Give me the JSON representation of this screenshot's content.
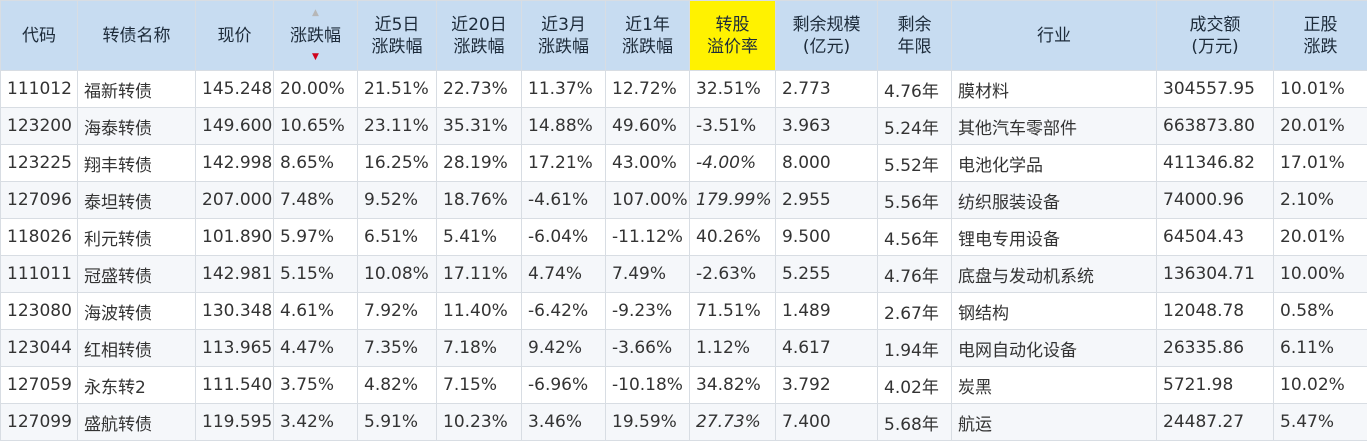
{
  "headers": {
    "code": "代码",
    "name": "转债名称",
    "price": "现价",
    "change_pct": "涨跌幅",
    "chg5d_l1": "近5日",
    "chg5d_l2": "涨跌幅",
    "chg20d_l1": "近20日",
    "chg20d_l2": "涨跌幅",
    "chg3m_l1": "近3月",
    "chg3m_l2": "涨跌幅",
    "chg1y_l1": "近1年",
    "chg1y_l2": "涨跌幅",
    "premium_l1": "转股",
    "premium_l2": "溢价率",
    "scale_l1": "剩余规模",
    "scale_l2": "(亿元)",
    "years_l1": "剩余",
    "years_l2": "年限",
    "industry": "行业",
    "turnover_l1": "成交额",
    "turnover_l2": "(万元)",
    "stock_chg_l1": "正股",
    "stock_chg_l2": "涨跌",
    "sort_up_arrow": "▲",
    "sort_down_arrow": "▼"
  },
  "colors": {
    "header_bg": "#c7dcf1",
    "highlight_header_bg": "#fff200",
    "code_link": "#1f5bb5",
    "up": "#e02020",
    "down": "#169c3c",
    "muted": "#a9a9a9"
  },
  "rows": [
    {
      "code": "111012",
      "name": "福新转债",
      "name_red": false,
      "price": "145.248",
      "change_pct": "20.00%",
      "chg5d": "21.51%",
      "chg20d": "22.73%",
      "chg3m": "11.37%",
      "chg3m_dir": "up",
      "chg1y": "12.72%",
      "chg1y_dir": "up",
      "premium": "32.51%",
      "premium_muted": false,
      "scale": "2.773",
      "years": "4.76年",
      "industry": "膜材料",
      "turnover": "304557.95",
      "stock_chg": "10.01%"
    },
    {
      "code": "123200",
      "name": "海泰转债",
      "name_red": false,
      "price": "149.600",
      "change_pct": "10.65%",
      "chg5d": "23.11%",
      "chg20d": "35.31%",
      "chg3m": "14.88%",
      "chg3m_dir": "up",
      "chg1y": "49.60%",
      "chg1y_dir": "up",
      "premium": "-3.51%",
      "premium_muted": false,
      "scale": "3.963",
      "years": "5.24年",
      "industry": "其他汽车零部件",
      "turnover": "663873.80",
      "stock_chg": "20.01%"
    },
    {
      "code": "123225",
      "name": "翔丰转债",
      "name_red": false,
      "price": "142.998",
      "change_pct": "8.65%",
      "chg5d": "16.25%",
      "chg20d": "28.19%",
      "chg3m": "17.21%",
      "chg3m_dir": "up",
      "chg1y": "43.00%",
      "chg1y_dir": "up",
      "premium": "-4.00%",
      "premium_muted": true,
      "scale": "8.000",
      "years": "5.52年",
      "industry": "电池化学品",
      "turnover": "411346.82",
      "stock_chg": "17.01%"
    },
    {
      "code": "127096",
      "name": "泰坦转债",
      "name_red": false,
      "price": "207.000",
      "change_pct": "7.48%",
      "chg5d": "9.52%",
      "chg20d": "18.76%",
      "chg3m": "-4.61%",
      "chg3m_dir": "down",
      "chg1y": "107.00%",
      "chg1y_dir": "up",
      "premium": "179.99%",
      "premium_muted": true,
      "scale": "2.955",
      "years": "5.56年",
      "industry": "纺织服装设备",
      "turnover": "74000.96",
      "stock_chg": "2.10%"
    },
    {
      "code": "118026",
      "name": "利元转债",
      "name_red": false,
      "price": "101.890",
      "change_pct": "5.97%",
      "chg5d": "6.51%",
      "chg20d": "5.41%",
      "chg3m": "-6.04%",
      "chg3m_dir": "down",
      "chg1y": "-11.12%",
      "chg1y_dir": "down",
      "premium": "40.26%",
      "premium_muted": false,
      "scale": "9.500",
      "years": "4.56年",
      "industry": "锂电专用设备",
      "turnover": "64504.43",
      "stock_chg": "20.01%"
    },
    {
      "code": "111011",
      "name": "冠盛转债",
      "name_red": true,
      "price": "142.981",
      "change_pct": "5.15%",
      "chg5d": "10.08%",
      "chg20d": "17.11%",
      "chg3m": "4.74%",
      "chg3m_dir": "up",
      "chg1y": "7.49%",
      "chg1y_dir": "up",
      "premium": "-2.63%",
      "premium_muted": false,
      "scale": "5.255",
      "years": "4.76年",
      "industry": "底盘与发动机系统",
      "turnover": "136304.71",
      "stock_chg": "10.00%"
    },
    {
      "code": "123080",
      "name": "海波转债",
      "name_red": true,
      "price": "130.348",
      "change_pct": "4.61%",
      "chg5d": "7.92%",
      "chg20d": "11.40%",
      "chg3m": "-6.42%",
      "chg3m_dir": "down",
      "chg1y": "-9.23%",
      "chg1y_dir": "down",
      "premium": "71.51%",
      "premium_muted": false,
      "scale": "1.489",
      "years": "2.67年",
      "industry": "钢结构",
      "turnover": "12048.78",
      "stock_chg": "0.58%"
    },
    {
      "code": "123044",
      "name": "红相转债",
      "name_red": false,
      "price": "113.965",
      "change_pct": "4.47%",
      "chg5d": "7.35%",
      "chg20d": "7.18%",
      "chg3m": "9.42%",
      "chg3m_dir": "up",
      "chg1y": "-3.66%",
      "chg1y_dir": "down",
      "premium": "1.12%",
      "premium_muted": false,
      "scale": "4.617",
      "years": "1.94年",
      "industry": "电网自动化设备",
      "turnover": "26335.86",
      "stock_chg": "6.11%"
    },
    {
      "code": "127059",
      "name": "永东转2",
      "name_red": false,
      "price": "111.540",
      "change_pct": "3.75%",
      "chg5d": "4.82%",
      "chg20d": "7.15%",
      "chg3m": "-6.96%",
      "chg3m_dir": "down",
      "chg1y": "-10.18%",
      "chg1y_dir": "down",
      "premium": "34.82%",
      "premium_muted": false,
      "scale": "3.792",
      "years": "4.02年",
      "industry": "炭黑",
      "turnover": "5721.98",
      "stock_chg": "10.02%"
    },
    {
      "code": "127099",
      "name": "盛航转债",
      "name_red": false,
      "price": "119.595",
      "change_pct": "3.42%",
      "chg5d": "5.91%",
      "chg20d": "10.23%",
      "chg3m": "3.46%",
      "chg3m_dir": "up",
      "chg1y": "19.59%",
      "chg1y_dir": "up",
      "premium": "27.73%",
      "premium_muted": true,
      "scale": "7.400",
      "years": "5.68年",
      "industry": "航运",
      "turnover": "24487.27",
      "stock_chg": "5.47%"
    }
  ]
}
